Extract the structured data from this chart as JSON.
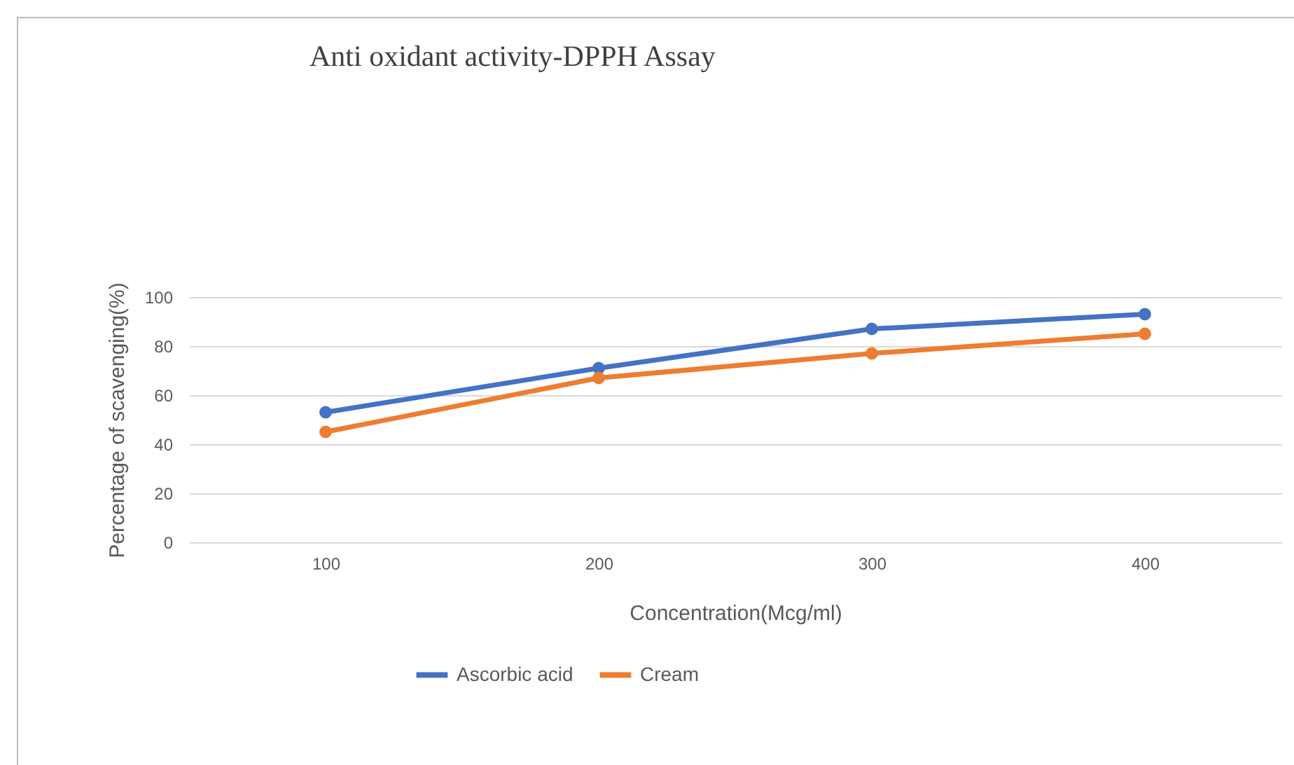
{
  "chart_data": {
    "type": "line",
    "title": "Anti oxidant activity-DPPH Assay",
    "xlabel": "Concentration(Mcg/ml)",
    "ylabel": "Percentage of scavenging(%)",
    "categories": [
      "100",
      "200",
      "300",
      "400"
    ],
    "series": [
      {
        "name": "Ascorbic acid",
        "color": "#4472c4",
        "values": [
          53,
          71,
          87,
          93
        ]
      },
      {
        "name": "Cream",
        "color": "#ed7d31",
        "values": [
          45,
          67,
          77,
          85
        ]
      }
    ],
    "ylim": [
      0,
      100
    ],
    "yticks": [
      0,
      20,
      40,
      60,
      80,
      100
    ],
    "grid": "y",
    "legend": "bottom",
    "marker": "circle",
    "line_style": "solid"
  }
}
